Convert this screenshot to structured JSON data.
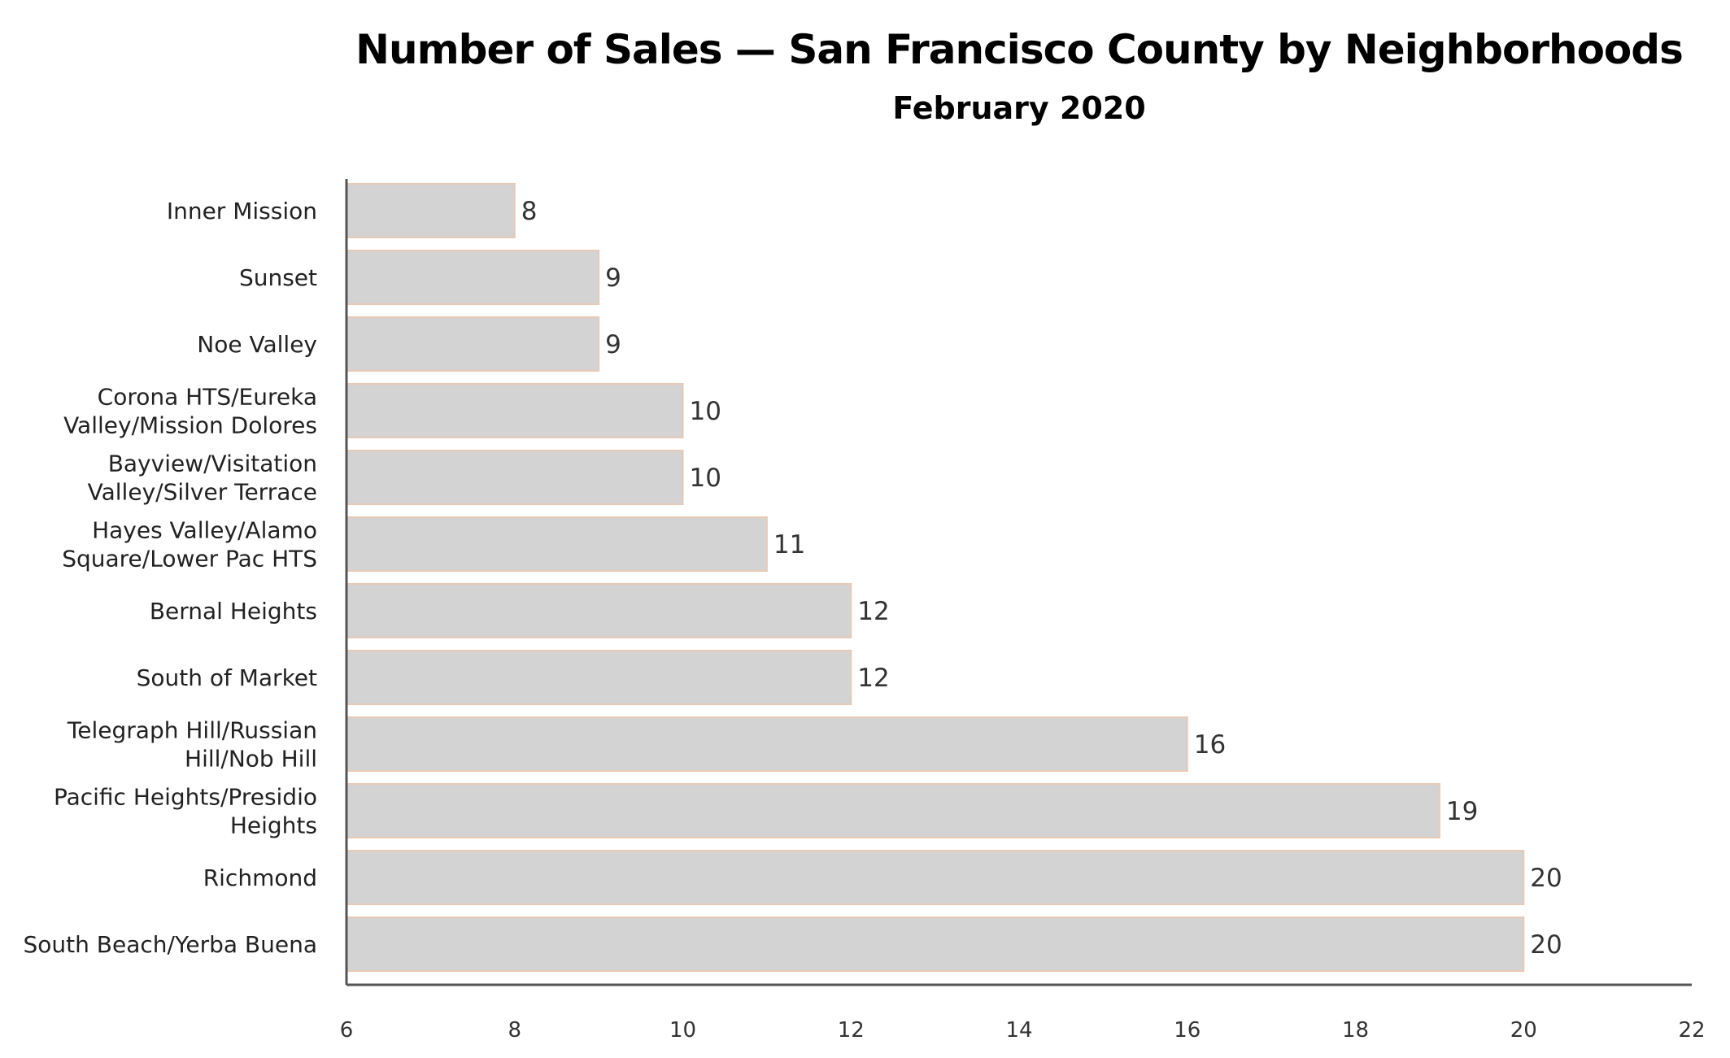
{
  "colors": {
    "bar_fill": "#d3d3d3",
    "bar_stroke": "#e8c9b4",
    "axis": "#555555",
    "text": "#222222"
  },
  "chart_data": {
    "type": "bar",
    "orientation": "horizontal",
    "title": "Number of Sales — San Francisco County by Neighborhoods",
    "subtitle": "February 2020",
    "xlabel": "",
    "ylabel": "",
    "categories": [
      [
        "Inner Mission"
      ],
      [
        "Sunset"
      ],
      [
        "Noe Valley"
      ],
      [
        "Corona HTS/Eureka",
        "Valley/Mission Dolores"
      ],
      [
        "Bayview/Visitation",
        "Valley/Silver Terrace"
      ],
      [
        "Hayes Valley/Alamo",
        "Square/Lower Pac HTS"
      ],
      [
        "Bernal Heights"
      ],
      [
        "South of Market"
      ],
      [
        "Telegraph Hill/Russian",
        "Hill/Nob Hill"
      ],
      [
        "Pacific Heights/Presidio",
        "Heights"
      ],
      [
        "Richmond"
      ],
      [
        "South Beach/Yerba Buena"
      ]
    ],
    "values": [
      8,
      9,
      9,
      10,
      10,
      11,
      12,
      12,
      16,
      19,
      20,
      20
    ],
    "xlim": [
      6,
      22
    ],
    "xticks": [
      6,
      8,
      10,
      12,
      14,
      16,
      18,
      20,
      22
    ],
    "grid": false,
    "legend": "none",
    "data_labels": true
  }
}
